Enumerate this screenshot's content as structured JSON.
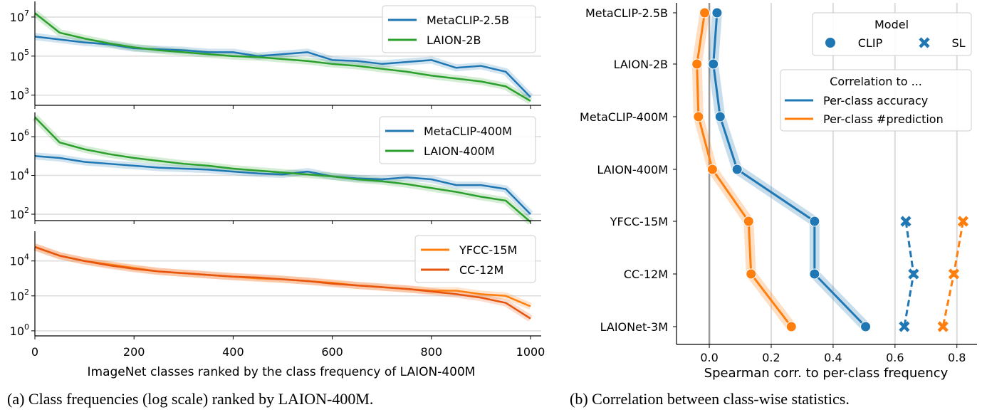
{
  "captions": {
    "a": "(a) Class frequencies (log scale) ranked by LAION-400M.",
    "b": "(b) Correlation between class-wise statistics."
  },
  "chart_data": [
    {
      "type": "line",
      "scale": "log",
      "xlabel": "ImageNet classes ranked by the class frequency of LAION-400M",
      "xlim": [
        0,
        1000
      ],
      "xticks": [
        0,
        200,
        400,
        600,
        800,
        1000
      ],
      "grid": true,
      "x": [
        0,
        50,
        100,
        150,
        200,
        250,
        300,
        350,
        400,
        450,
        500,
        550,
        600,
        650,
        700,
        750,
        800,
        850,
        900,
        950,
        1000
      ],
      "panels": [
        {
          "yticks": [
            {
              "base": "10",
              "exp": "7"
            },
            {
              "base": "10",
              "exp": "5"
            },
            {
              "base": "10",
              "exp": "3"
            }
          ],
          "ylim_log10": [
            2.48,
            7.8
          ],
          "legend": "top-right",
          "series": [
            {
              "name": "MetaCLIP-2.5B",
              "color": "#1f77b4",
              "log10_values": [
                6.0,
                5.85,
                5.7,
                5.6,
                5.4,
                5.35,
                5.3,
                5.2,
                5.2,
                5.0,
                5.1,
                5.2,
                4.8,
                4.75,
                4.6,
                4.7,
                4.8,
                4.4,
                4.5,
                4.2,
                2.9
              ]
            },
            {
              "name": "LAION-2B",
              "color": "#2ca02c",
              "log10_values": [
                7.2,
                6.2,
                5.9,
                5.65,
                5.45,
                5.3,
                5.2,
                5.1,
                5.0,
                4.95,
                4.85,
                4.75,
                4.6,
                4.5,
                4.35,
                4.2,
                4.0,
                3.85,
                3.7,
                3.45,
                2.7
              ]
            }
          ]
        },
        {
          "yticks": [
            {
              "base": "10",
              "exp": "6"
            },
            {
              "base": "10",
              "exp": "4"
            },
            {
              "base": "10",
              "exp": "2"
            }
          ],
          "ylim_log10": [
            1.67,
            7.25
          ],
          "legend": "top-right",
          "series": [
            {
              "name": "MetaCLIP-400M",
              "color": "#1f77b4",
              "log10_values": [
                5.0,
                4.9,
                4.7,
                4.6,
                4.5,
                4.4,
                4.35,
                4.3,
                4.2,
                4.1,
                4.05,
                4.2,
                3.95,
                3.85,
                3.8,
                3.9,
                3.8,
                3.5,
                3.5,
                3.3,
                2.0
              ]
            },
            {
              "name": "LAION-400M",
              "color": "#2ca02c",
              "log10_values": [
                7.0,
                5.7,
                5.35,
                5.1,
                4.9,
                4.75,
                4.6,
                4.5,
                4.35,
                4.25,
                4.15,
                4.05,
                3.95,
                3.8,
                3.7,
                3.55,
                3.35,
                3.15,
                2.9,
                2.7,
                1.6
              ]
            }
          ]
        },
        {
          "yticks": [
            {
              "base": "10",
              "exp": "4"
            },
            {
              "base": "10",
              "exp": "2"
            },
            {
              "base": "10",
              "exp": "0"
            }
          ],
          "ylim_log10": [
            -0.29,
            5.7
          ],
          "legend": "top-right",
          "series": [
            {
              "name": "YFCC-15M",
              "color": "#ff7f0e",
              "log10_values": [
                4.8,
                4.3,
                4.0,
                3.8,
                3.6,
                3.4,
                3.3,
                3.2,
                3.1,
                3.0,
                2.95,
                2.85,
                2.75,
                2.6,
                2.5,
                2.4,
                2.3,
                2.3,
                2.1,
                2.0,
                1.4
              ]
            },
            {
              "name": "CC-12M",
              "color": "#e6550d",
              "log10_values": [
                4.8,
                4.3,
                4.0,
                3.75,
                3.55,
                3.4,
                3.3,
                3.2,
                3.1,
                3.05,
                2.95,
                2.85,
                2.7,
                2.6,
                2.5,
                2.4,
                2.25,
                2.1,
                1.9,
                1.6,
                0.7
              ]
            }
          ]
        }
      ]
    },
    {
      "type": "line",
      "xlabel": "Spearman corr. to per-class frequency",
      "xlim": [
        -0.106,
        0.865
      ],
      "xticks": [
        "0.0",
        "0.2",
        "0.4",
        "0.6",
        "0.8"
      ],
      "grid": true,
      "categories": [
        "MetaCLIP-2.5B",
        "LAION-2B",
        "MetaCLIP-400M",
        "LAION-400M",
        "YFCC-15M",
        "CC-12M",
        "LAIONet-3M"
      ],
      "legend_model": {
        "title": "Model",
        "items": [
          "CLIP",
          "SL"
        ]
      },
      "legend_corr": {
        "title": "Correlation to ...",
        "items": [
          "Per-class accuracy",
          "Per-class #prediction"
        ]
      },
      "colors": {
        "accuracy": "#1f77b4",
        "prediction": "#ff7f0e"
      },
      "series": [
        {
          "name": "Per-class accuracy",
          "model": "CLIP",
          "values": [
            0.025,
            0.013,
            0.035,
            0.09,
            0.34,
            0.34,
            0.505
          ]
        },
        {
          "name": "Per-class #prediction",
          "model": "CLIP",
          "values": [
            -0.015,
            -0.04,
            -0.035,
            0.01,
            0.127,
            0.135,
            0.265
          ]
        },
        {
          "name": "Per-class accuracy",
          "model": "SL",
          "values": [
            null,
            null,
            null,
            null,
            0.635,
            0.66,
            0.63
          ]
        },
        {
          "name": "Per-class #prediction",
          "model": "SL",
          "values": [
            null,
            null,
            null,
            null,
            0.82,
            0.79,
            0.755
          ]
        }
      ]
    }
  ]
}
